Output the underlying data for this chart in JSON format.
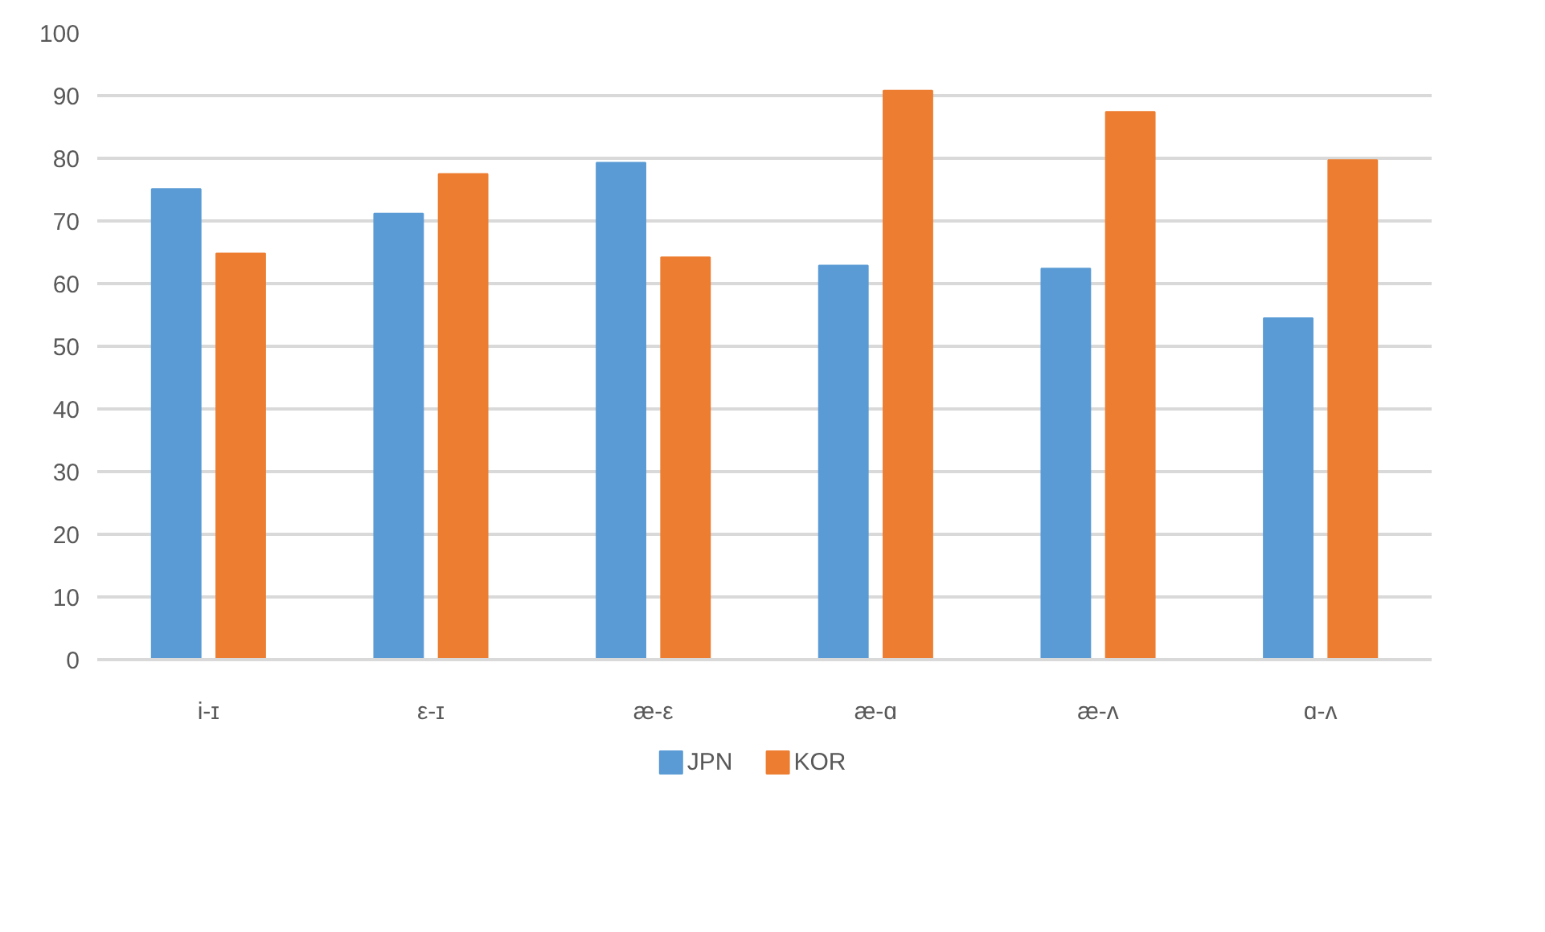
{
  "chart_data": {
    "type": "bar",
    "categories": [
      "i-ɪ",
      "ε-ɪ",
      "æ-ε",
      "æ-ɑ",
      "æ-ʌ",
      "ɑ-ʌ"
    ],
    "series": [
      {
        "name": "JPN",
        "color": "#5b9bd5",
        "values": [
          75.1,
          71.2,
          79.3,
          62.9,
          62.4,
          54.5
        ]
      },
      {
        "name": "KOR",
        "color": "#ed7d31",
        "values": [
          64.8,
          77.5,
          64.2,
          90.8,
          87.4,
          79.7
        ]
      }
    ],
    "ylim": [
      0,
      100
    ],
    "yticks": [
      0,
      10,
      20,
      30,
      40,
      50,
      60,
      70,
      80,
      90,
      100
    ],
    "grid": "y",
    "legend": "bottom"
  }
}
